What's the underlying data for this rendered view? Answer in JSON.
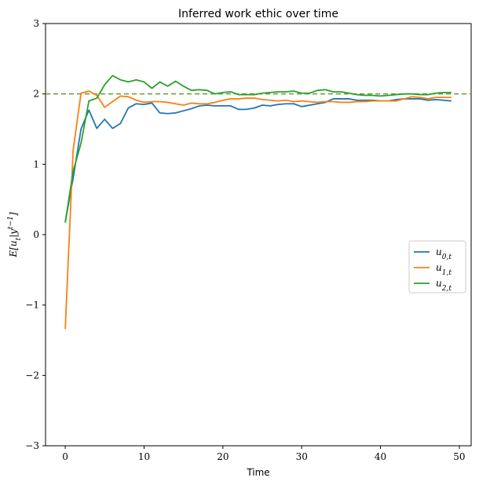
{
  "chart_data": {
    "type": "line",
    "title": "Inferred work ethic over time",
    "xlabel": "Time",
    "ylabel": "E[u_t|y^{t-1}]",
    "xlim": [
      -2.5,
      51.5
    ],
    "ylim": [
      -3,
      3
    ],
    "xticks": [
      0,
      10,
      20,
      30,
      40,
      50
    ],
    "yticks": [
      -3,
      -2,
      -1,
      0,
      1,
      2,
      3
    ],
    "grid": false,
    "legend_position": "center-right",
    "reference_line": {
      "y": 2,
      "color": "#6a9a3a",
      "style": "dashed"
    },
    "x": [
      0,
      1,
      2,
      3,
      4,
      5,
      6,
      7,
      8,
      9,
      10,
      11,
      12,
      13,
      14,
      15,
      16,
      17,
      18,
      19,
      20,
      21,
      22,
      23,
      24,
      25,
      26,
      27,
      28,
      29,
      30,
      31,
      32,
      33,
      34,
      35,
      36,
      37,
      38,
      39,
      40,
      41,
      42,
      43,
      44,
      45,
      46,
      47,
      48,
      49
    ],
    "series": [
      {
        "name": "u_{0,t}",
        "color": "#1f77b4",
        "values": [
          0.18,
          0.8,
          1.5,
          1.77,
          1.51,
          1.64,
          1.51,
          1.58,
          1.8,
          1.86,
          1.85,
          1.87,
          1.73,
          1.72,
          1.73,
          1.76,
          1.79,
          1.83,
          1.84,
          1.83,
          1.83,
          1.83,
          1.78,
          1.78,
          1.8,
          1.84,
          1.83,
          1.85,
          1.86,
          1.86,
          1.82,
          1.84,
          1.86,
          1.88,
          1.93,
          1.93,
          1.93,
          1.91,
          1.91,
          1.91,
          1.9,
          1.9,
          1.92,
          1.93,
          1.93,
          1.93,
          1.91,
          1.92,
          1.91,
          1.9
        ]
      },
      {
        "name": "u_{1,t}",
        "color": "#ff7f0e",
        "values": [
          -1.34,
          1.2,
          2.01,
          2.04,
          1.98,
          1.81,
          1.89,
          1.97,
          1.96,
          1.91,
          1.88,
          1.89,
          1.89,
          1.88,
          1.86,
          1.84,
          1.87,
          1.86,
          1.86,
          1.88,
          1.91,
          1.93,
          1.93,
          1.94,
          1.94,
          1.92,
          1.91,
          1.9,
          1.91,
          1.89,
          1.9,
          1.89,
          1.88,
          1.89,
          1.89,
          1.88,
          1.88,
          1.89,
          1.89,
          1.9,
          1.9,
          1.9,
          1.9,
          1.93,
          1.96,
          1.95,
          1.93,
          1.95,
          1.95,
          1.95
        ]
      },
      {
        "name": "u_{2,t}",
        "color": "#2ca02c",
        "values": [
          0.17,
          0.9,
          1.3,
          1.9,
          1.94,
          2.13,
          2.26,
          2.2,
          2.17,
          2.2,
          2.17,
          2.08,
          2.17,
          2.11,
          2.18,
          2.11,
          2.05,
          2.06,
          2.05,
          2.0,
          2.02,
          2.03,
          1.99,
          1.99,
          1.99,
          2.01,
          2.02,
          2.03,
          2.03,
          2.04,
          2.01,
          2.01,
          2.05,
          2.06,
          2.03,
          2.03,
          2.01,
          1.99,
          1.98,
          1.98,
          1.97,
          1.98,
          1.99,
          2.0,
          2.0,
          1.99,
          1.99,
          2.01,
          2.02,
          2.02
        ]
      }
    ]
  }
}
